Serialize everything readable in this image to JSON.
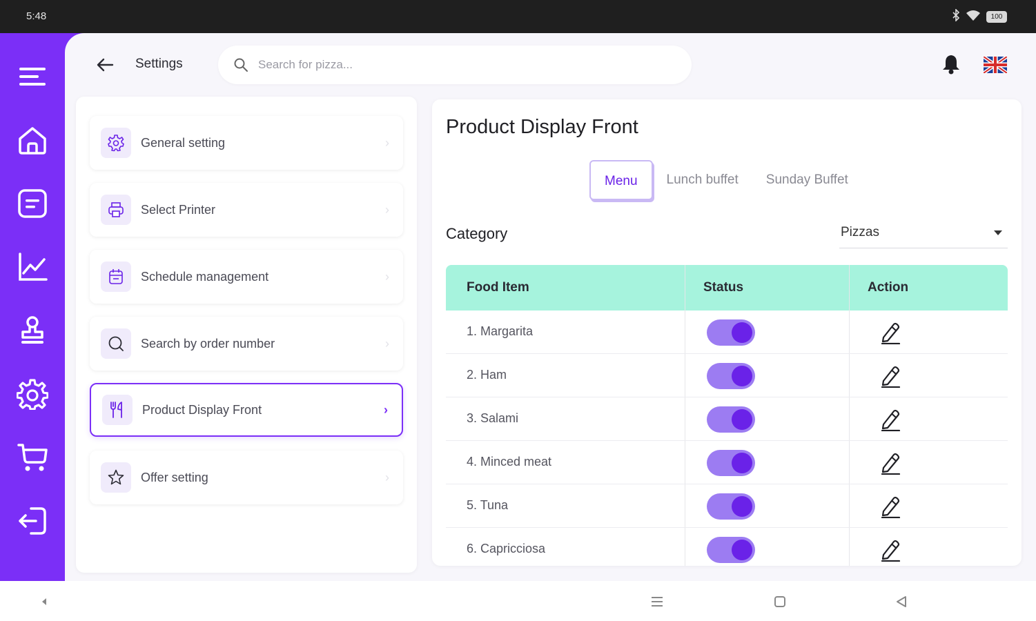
{
  "status_bar": {
    "time": "5:48",
    "battery": "100"
  },
  "header": {
    "title": "Settings",
    "search": {
      "placeholder": "Search for pizza..."
    }
  },
  "sidebar": {
    "icons": [
      "menu-icon",
      "home-icon",
      "orders-icon",
      "chart-icon",
      "stamp-icon",
      "settings-icon",
      "cart-icon",
      "logout-icon"
    ]
  },
  "settings_menu": {
    "items": [
      {
        "label": "General setting",
        "icon": "gear-icon"
      },
      {
        "label": "Select Printer",
        "icon": "printer-icon"
      },
      {
        "label": "Schedule management",
        "icon": "calendar-icon"
      },
      {
        "label": "Search by order number",
        "icon": "search-icon"
      },
      {
        "label": "Product Display Front",
        "icon": "cutlery-icon",
        "active": true
      },
      {
        "label": "Offer setting",
        "icon": "star-icon"
      }
    ]
  },
  "content": {
    "title": "Product Display Front",
    "tabs": [
      {
        "label": "Menu",
        "active": true
      },
      {
        "label": "Lunch buffet"
      },
      {
        "label": "Sunday Buffet"
      }
    ],
    "category_label": "Category",
    "category_value": "Pizzas",
    "table": {
      "headers": [
        "Food Item",
        "Status",
        "Action"
      ],
      "rows": [
        {
          "name": "1. Margarita",
          "status": "on"
        },
        {
          "name": "2. Ham",
          "status": "on"
        },
        {
          "name": "3. Salami",
          "status": "on"
        },
        {
          "name": "4. Minced meat",
          "status": "on"
        },
        {
          "name": "5. Tuna",
          "status": "on"
        },
        {
          "name": "6. Capricciosa",
          "status": "on"
        }
      ]
    }
  },
  "colors": {
    "accent": "#7b2ff7",
    "table_header": "#a6f3dd",
    "toggle_track": "#9c7cf2",
    "toggle_knob": "#6a22e8"
  }
}
